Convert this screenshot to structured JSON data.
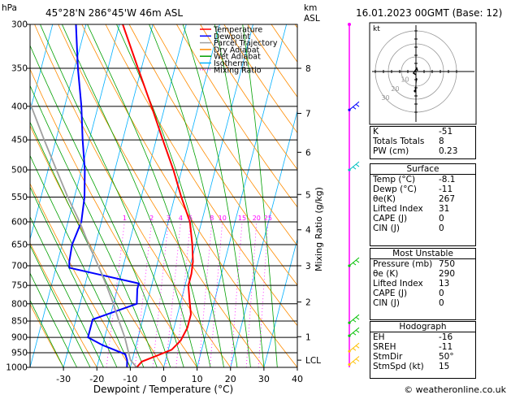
{
  "header": {
    "location": "45°28'N  286°45'W  46m  ASL",
    "datetime": "16.01.2023  00GMT  (Base: 12)",
    "hpa_unit": "hPa",
    "km_unit": "km",
    "asl_unit": "ASL"
  },
  "footer": {
    "copyright": "© weatheronline.co.uk"
  },
  "legend": [
    {
      "label": "Temperature",
      "color": "#ff0000",
      "style": "solid"
    },
    {
      "label": "Dewpoint",
      "color": "#0000ff",
      "style": "solid"
    },
    {
      "label": "Parcel Trajectory",
      "color": "#a0a0a0",
      "style": "solid"
    },
    {
      "label": "Dry Adiabat",
      "color": "#ff8c00",
      "style": "solid"
    },
    {
      "label": "Wet Adiabat",
      "color": "#00a000",
      "style": "solid"
    },
    {
      "label": "Isotherm",
      "color": "#00b0ff",
      "style": "solid"
    },
    {
      "label": "Mixing Ratio",
      "color": "#ff00ff",
      "style": "dotted"
    }
  ],
  "chart_data": {
    "type": "line",
    "chart_kind": "skew-T log-P",
    "xlabel": "Dewpoint / Temperature (°C)",
    "ylabel_right": "Mixing Ratio (g/kg)",
    "x_ticks": [
      "-30",
      "-20",
      "-10",
      "0",
      "10",
      "20",
      "30",
      "40"
    ],
    "xlim": [
      -40,
      40
    ],
    "pressure_levels": [
      300,
      350,
      400,
      450,
      500,
      550,
      600,
      650,
      700,
      750,
      800,
      850,
      900,
      950,
      1000
    ],
    "ylim_hpa": [
      1000,
      300
    ],
    "km_ticks": [
      {
        "label": "8",
        "p": 350
      },
      {
        "label": "7",
        "p": 410
      },
      {
        "label": "6",
        "p": 470
      },
      {
        "label": "5",
        "p": 545
      },
      {
        "label": "4",
        "p": 617
      },
      {
        "label": "3",
        "p": 700
      },
      {
        "label": "2",
        "p": 795
      },
      {
        "label": "1",
        "p": 898
      },
      {
        "label": "LCL",
        "p": 975
      }
    ],
    "mixing_ratio_labels": [
      "1",
      "2",
      "3",
      "4",
      "5",
      "8",
      "10",
      "15",
      "20",
      "25"
    ],
    "series": [
      {
        "name": "Temperature",
        "color": "#ff0000",
        "points": [
          [
            1000,
            -8.1
          ],
          [
            980,
            -7
          ],
          [
            960,
            -3
          ],
          [
            940,
            1
          ],
          [
            910,
            3
          ],
          [
            870,
            4
          ],
          [
            830,
            4
          ],
          [
            790,
            2.5
          ],
          [
            750,
            1
          ],
          [
            720,
            1
          ],
          [
            690,
            0.5
          ],
          [
            650,
            -1
          ],
          [
            600,
            -3.5
          ],
          [
            550,
            -8
          ],
          [
            500,
            -12.5
          ],
          [
            450,
            -18
          ],
          [
            400,
            -24
          ],
          [
            350,
            -31
          ],
          [
            300,
            -39
          ]
        ]
      },
      {
        "name": "Dewpoint",
        "color": "#0000ff",
        "points": [
          [
            1000,
            -11
          ],
          [
            975,
            -11.5
          ],
          [
            955,
            -12.5
          ],
          [
            925,
            -20
          ],
          [
            900,
            -25
          ],
          [
            870,
            -25
          ],
          [
            845,
            -25
          ],
          [
            800,
            -13
          ],
          [
            760,
            -14
          ],
          [
            745,
            -14
          ],
          [
            705,
            -36
          ],
          [
            690,
            -36.5
          ],
          [
            650,
            -37
          ],
          [
            600,
            -36
          ],
          [
            550,
            -37
          ],
          [
            500,
            -39
          ],
          [
            450,
            -42
          ],
          [
            400,
            -45
          ],
          [
            350,
            -49
          ],
          [
            300,
            -53
          ]
        ]
      },
      {
        "name": "Parcel Trajectory",
        "color": "#a0a0a0",
        "points": [
          [
            1000,
            -8.1
          ],
          [
            975,
            -10.5
          ],
          [
            900,
            -14
          ],
          [
            850,
            -17
          ],
          [
            800,
            -20
          ],
          [
            750,
            -23.5
          ],
          [
            700,
            -27.5
          ],
          [
            650,
            -32
          ],
          [
            600,
            -36.5
          ],
          [
            550,
            -42
          ],
          [
            500,
            -47.5
          ],
          [
            450,
            -53.5
          ],
          [
            400,
            -60
          ],
          [
            350,
            -67
          ],
          [
            300,
            -74
          ]
        ]
      }
    ]
  },
  "hodograph": {
    "label": "kt",
    "ring_labels": [
      "10",
      "20",
      "30"
    ]
  },
  "indices": [
    {
      "label": "K",
      "value": "-51"
    },
    {
      "label": "Totals Totals",
      "value": "8"
    },
    {
      "label": "PW (cm)",
      "value": "0.23"
    }
  ],
  "surface": {
    "title": "Surface",
    "rows": [
      {
        "label": "Temp (°C)",
        "value": "-8.1"
      },
      {
        "label": "Dewp (°C)",
        "value": "-11"
      },
      {
        "label": "θe(K)",
        "value": "267"
      },
      {
        "label": "Lifted Index",
        "value": "31"
      },
      {
        "label": "CAPE (J)",
        "value": "0"
      },
      {
        "label": "CIN (J)",
        "value": "0"
      }
    ]
  },
  "most_unstable": {
    "title": "Most Unstable",
    "rows": [
      {
        "label": "Pressure (mb)",
        "value": "750"
      },
      {
        "label": "θe (K)",
        "value": "290"
      },
      {
        "label": "Lifted Index",
        "value": "13"
      },
      {
        "label": "CAPE (J)",
        "value": "0"
      },
      {
        "label": "CIN (J)",
        "value": "0"
      }
    ]
  },
  "hodograph_table": {
    "title": "Hodograph",
    "rows": [
      {
        "label": "EH",
        "value": "-16"
      },
      {
        "label": "SREH",
        "value": "-11"
      },
      {
        "label": "StmDir",
        "value": "50°"
      },
      {
        "label": "StmSpd (kt)",
        "value": "15"
      }
    ]
  },
  "colors": {
    "dry_adiabat": "#ff8c00",
    "wet_adiabat": "#00a000",
    "isotherm": "#00b0ff",
    "mixing_ratio": "#ff00ff",
    "wind_barb_levels": [
      "#ff00ff",
      "#0000ff",
      "#00c0c0",
      "#00c000",
      "#ffc000"
    ]
  }
}
